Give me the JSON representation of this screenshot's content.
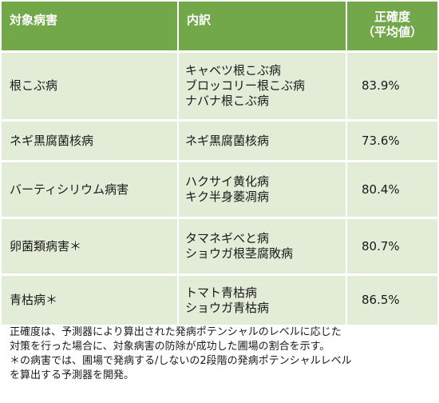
{
  "table": {
    "headers": {
      "col1": "対象病害",
      "col2": "内訳",
      "col3_line1": "正確度",
      "col3_line2": "（平均値）"
    },
    "rows": [
      {
        "disease": "根こぶ病",
        "breakdown": [
          "キャベツ根こぶ病",
          "ブロッコリー根こぶ病",
          "ナバナ根こぶ病"
        ],
        "accuracy": "83.9%"
      },
      {
        "disease": "ネギ黒腐菌核病",
        "breakdown": [
          "ネギ黒腐菌核病"
        ],
        "accuracy": "73.6%"
      },
      {
        "disease": "バーティシリウム病害",
        "breakdown": [
          "ハクサイ黄化病",
          "キク半身萎凋病"
        ],
        "accuracy": "80.4%"
      },
      {
        "disease": "卵菌類病害＊",
        "breakdown": [
          "タマネギべと病",
          "ショウガ根茎腐敗病"
        ],
        "accuracy": "80.7%"
      },
      {
        "disease": "青枯病＊",
        "breakdown": [
          "トマト青枯病",
          "ショウガ青枯病"
        ],
        "accuracy": "86.5%"
      }
    ]
  },
  "notes": {
    "line1": "正確度は、予測器により算出された発病ポテンシャルのレベルに応じた",
    "line2": "対策を行った場合に、対象病害の防除が成功した圃場の割合を示す。",
    "line3": "＊の病害では、圃場で発病する/しないの2段階の発病ポテンシャルレベル",
    "line4": "を算出する予測器を開発。"
  },
  "colors": {
    "header_bg": "#72a84a",
    "cell_bg": "#e2ecd7"
  }
}
